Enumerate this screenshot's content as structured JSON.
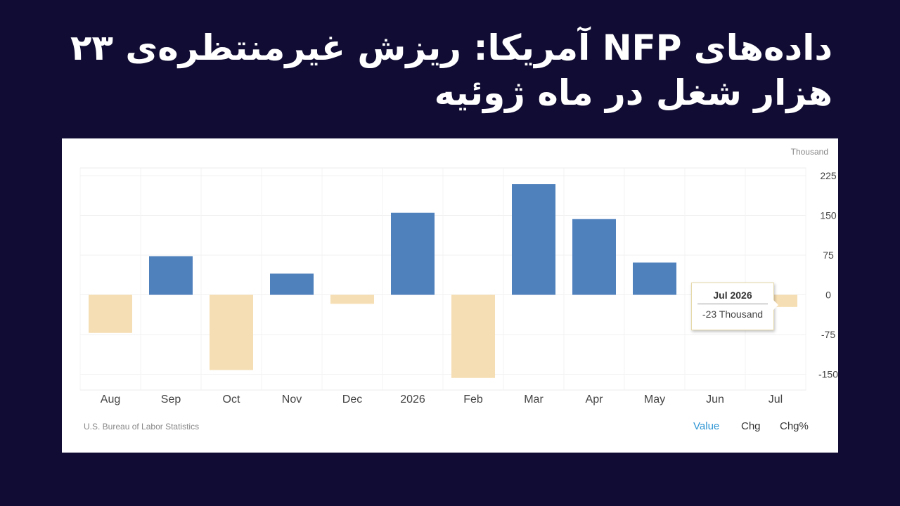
{
  "headline": "داده‌های NFP آمریکا: ریزش غیرمنتظره‌ی ۲۳ هزار شغل در ماه ژوئیه",
  "chart_data": {
    "type": "bar",
    "unit_label": "Thousand",
    "source": "U.S. Bureau of Labor Statistics",
    "categories": [
      "Aug",
      "Sep",
      "Oct",
      "Nov",
      "Dec",
      "2026",
      "Feb",
      "Mar",
      "Apr",
      "May",
      "Jun",
      "Jul"
    ],
    "values": [
      -72,
      73,
      -142,
      40,
      -17,
      155,
      -157,
      209,
      143,
      61,
      0,
      -23
    ],
    "y_ticks": [
      225,
      150,
      75,
      0,
      -75,
      -150
    ],
    "ylim": [
      -180,
      235
    ],
    "positive_color": "#4f81bd",
    "negative_color": "#f5deb3",
    "grid": true,
    "tooltip": {
      "title": "Jul 2026",
      "value": "-23 Thousand"
    }
  },
  "tabs": [
    {
      "label": "Value",
      "active": true
    },
    {
      "label": "Chg",
      "active": false
    },
    {
      "label": "Chg%",
      "active": false
    }
  ]
}
